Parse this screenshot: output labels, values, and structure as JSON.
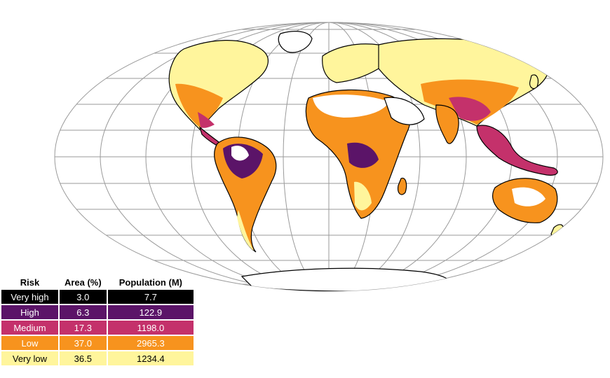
{
  "legend": {
    "headers": {
      "risk": "Risk",
      "area": "Area (%)",
      "population": "Population (M)"
    },
    "rows": [
      {
        "risk": "Very high",
        "area": "3.0",
        "population": "7.7",
        "bg": "#000000",
        "fg": "#ffffff"
      },
      {
        "risk": "High",
        "area": "6.3",
        "population": "122.9",
        "bg": "#5b1468",
        "fg": "#ffffff"
      },
      {
        "risk": "Medium",
        "area": "17.3",
        "population": "1198.0",
        "bg": "#c4316b",
        "fg": "#ffffff"
      },
      {
        "risk": "Low",
        "area": "37.0",
        "population": "2965.3",
        "bg": "#f7931e",
        "fg": "#ffffff"
      },
      {
        "risk": "Very low",
        "area": "36.5",
        "population": "1234.4",
        "bg": "#fff59c",
        "fg": "#000000"
      }
    ]
  },
  "map": {
    "projection": "mollweide",
    "graticule_color": "#9a9a9a",
    "coast_color": "#000000",
    "no_data_color": "#ffffff"
  }
}
